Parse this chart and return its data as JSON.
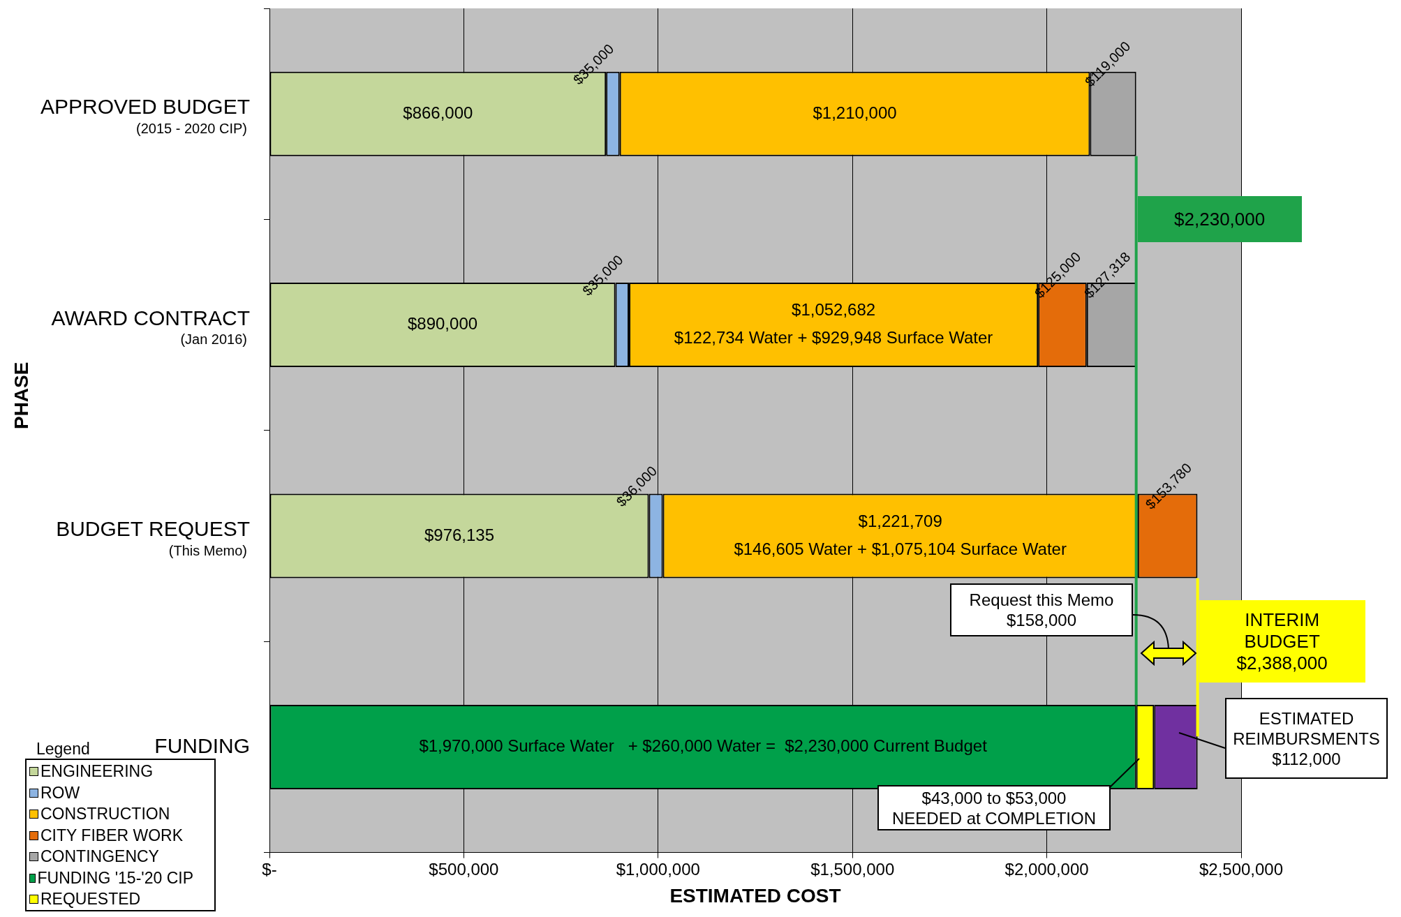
{
  "chart_data": {
    "type": "bar",
    "orientation": "horizontal",
    "stacked": true,
    "xlabel": "ESTIMATED COST",
    "ylabel": "PHASE",
    "legend_title": "Legend",
    "legend": "bottom left",
    "grid": "x",
    "categories": [
      "APPROVED BUDGET\n(2015 - 2020 CIP)",
      "AWARD CONTRACT\n(Jan 2016)",
      "BUDGET REQUEST\n(This Memo)",
      "FUNDING"
    ],
    "xlim": [
      0,
      2500000
    ],
    "xticks": [
      {
        "value": 0,
        "label": "$-"
      },
      {
        "value": 500000,
        "label": "$500,000"
      },
      {
        "value": 1000000,
        "label": "$1,000,000"
      },
      {
        "value": 1500000,
        "label": "$1,500,000"
      },
      {
        "value": 2000000,
        "label": "$2,000,000"
      },
      {
        "value": 2500000,
        "label": "$2,500,000"
      }
    ],
    "series": [
      {
        "name": "ENGINEERING",
        "color": "#c4d79b",
        "values": [
          866000,
          890000,
          976135,
          null
        ],
        "value_labels": [
          "$866,000",
          "$890,000",
          "$976,135",
          null
        ]
      },
      {
        "name": "ROW",
        "color": "#8db4e2",
        "values": [
          35000,
          35000,
          36000,
          null
        ],
        "value_labels": [
          "$35,000",
          "$35,000",
          "$36,000",
          null
        ]
      },
      {
        "name": "CONSTRUCTION",
        "color": "#ffc000",
        "values": [
          1210000,
          1052682,
          1221709,
          null
        ],
        "value_labels": [
          "$1,210,000",
          "$1,052,682\n$122,734 Water + $929,948 Surface Water",
          "$1,221,709\n$146,605 Water + $1,075,104 Surface Water",
          null
        ]
      },
      {
        "name": "CITY FIBER WORK",
        "color": "#e46c0a",
        "values": [
          null,
          125000,
          153780,
          null
        ],
        "value_labels": [
          null,
          "$125,000",
          "$153,780",
          null
        ]
      },
      {
        "name": "CONTINGENCY",
        "color": "#a6a6a6",
        "values": [
          119000,
          127318,
          null,
          null
        ],
        "value_labels": [
          "$119,000",
          "$127,318",
          null,
          null
        ]
      },
      {
        "name": "FUNDING '15-'20 CIP",
        "color": "#00a04a",
        "values": [
          null,
          null,
          null,
          2230000
        ],
        "value_labels": [
          null,
          null,
          null,
          "$1,970,000 Surface Water   + $260,000 Water =  $2,230,000 Current Budget"
        ]
      },
      {
        "name": "REQUESTED",
        "color": "#ffff00",
        "values": [
          null,
          null,
          null,
          46000
        ]
      },
      {
        "color": "#7030a0",
        "values": [
          null,
          null,
          null,
          112000
        ]
      }
    ],
    "ref_lines": [
      {
        "axis": "x",
        "value": 2230000,
        "label": "$2,230,000",
        "color": "#1fa34a"
      },
      {
        "axis": "x",
        "value": 2388000,
        "label": "INTERIM\nBUDGET\n$2,388,000",
        "color": "#ffff00"
      }
    ],
    "annotations": [
      "Request this Memo\n$158,000",
      "ESTIMATED\nREIMBURSMENTS\n$112,000",
      "$43,000 to $53,000\nNEEDED at COMPLETION"
    ]
  }
}
